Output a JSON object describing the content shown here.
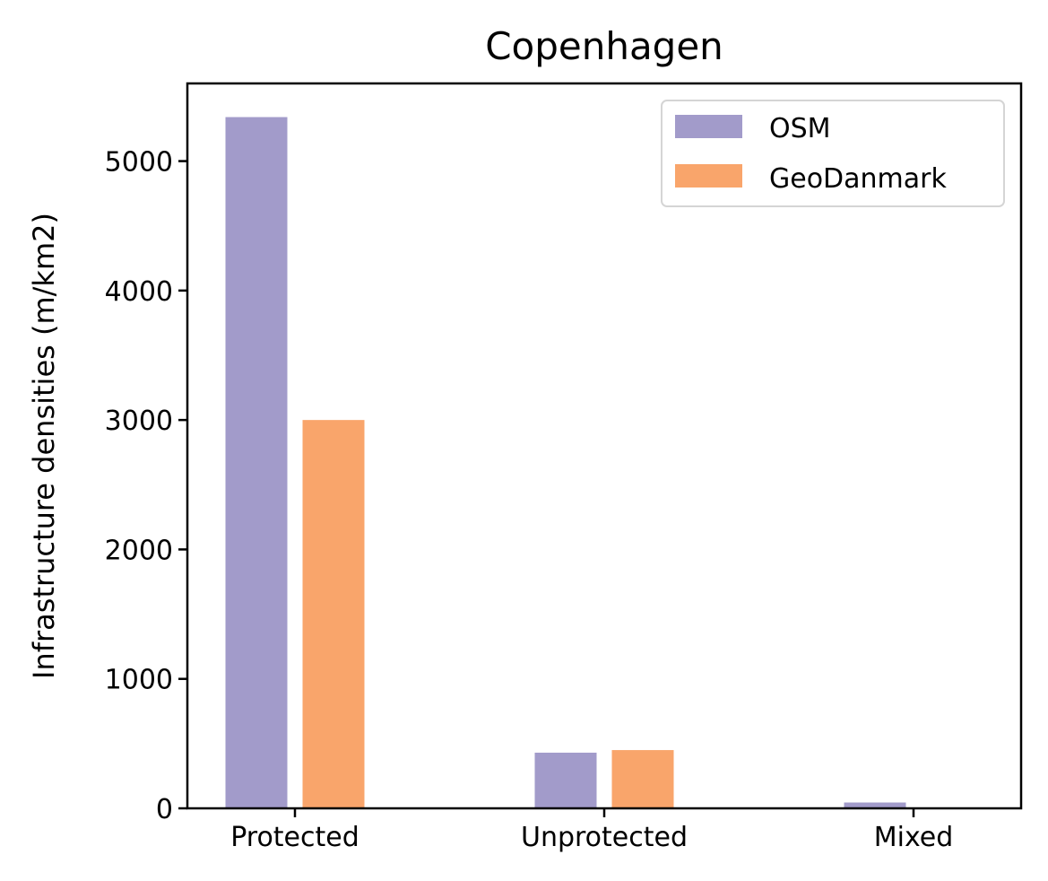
{
  "chart_data": {
    "type": "bar",
    "title": "Copenhagen",
    "xlabel": "",
    "ylabel": "Infrastructure densities (m/km2)",
    "categories": [
      "Protected",
      "Unprotected",
      "Mixed"
    ],
    "series": [
      {
        "name": "OSM",
        "values": [
          5340,
          430,
          45
        ],
        "color": "#a29bca"
      },
      {
        "name": "GeoDanmark",
        "values": [
          3000,
          450,
          0
        ],
        "color": "#f9a56b"
      }
    ],
    "ylim": [
      0,
      5600
    ],
    "yticks": [
      0,
      1000,
      2000,
      3000,
      4000,
      5000
    ],
    "grid": false,
    "legend_position": "top-right"
  }
}
